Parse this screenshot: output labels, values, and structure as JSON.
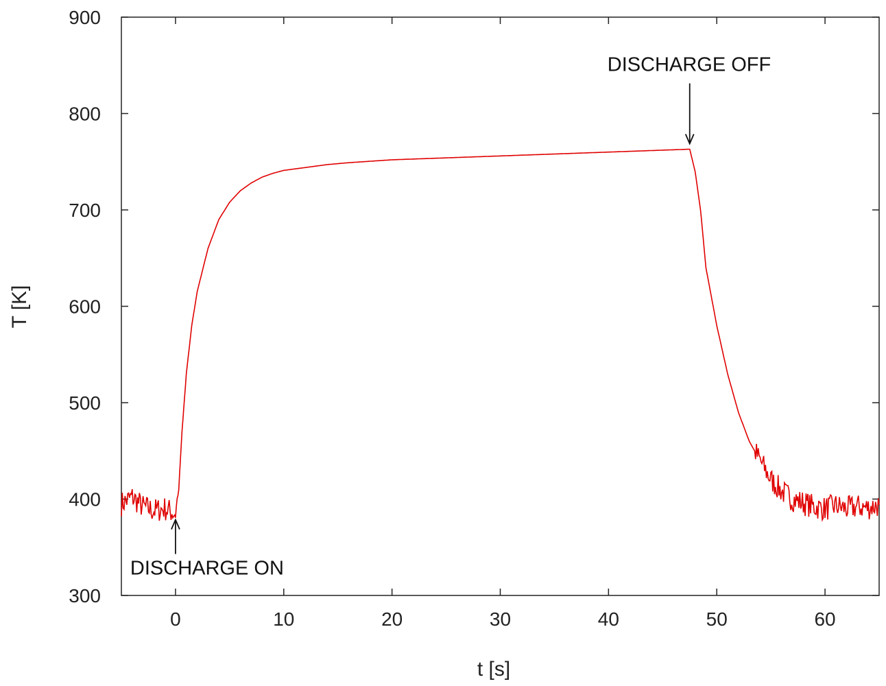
{
  "chart_data": {
    "type": "line",
    "title": "",
    "xlabel": "t [s]",
    "ylabel": "T [K]",
    "xlim": [
      -5,
      65
    ],
    "ylim": [
      300,
      900
    ],
    "xticks": [
      0,
      10,
      20,
      30,
      40,
      50,
      60
    ],
    "yticks": [
      300,
      400,
      500,
      600,
      700,
      800,
      900
    ],
    "grid": false,
    "legend": "none",
    "series": [
      {
        "name": "T",
        "color": "#e00000",
        "x": [
          -5,
          -4,
          -3,
          -2,
          -1,
          0,
          0.3,
          0.6,
          1,
          1.5,
          2,
          3,
          4,
          5,
          6,
          7,
          8,
          9,
          10,
          12,
          14,
          16,
          20,
          25,
          30,
          35,
          40,
          45,
          47.5,
          48,
          48.5,
          49,
          50,
          51,
          52,
          53,
          54,
          55,
          56,
          57,
          58,
          59,
          60,
          61,
          62,
          63,
          64,
          65
        ],
        "y": [
          395,
          402,
          392,
          388,
          390,
          385,
          410,
          470,
          530,
          580,
          615,
          660,
          690,
          708,
          720,
          728,
          734,
          738,
          741,
          744,
          747,
          749,
          752,
          754,
          756,
          758,
          760,
          762,
          763,
          740,
          700,
          640,
          580,
          530,
          490,
          460,
          440,
          420,
          408,
          400,
          396,
          392,
          390,
          393,
          390,
          392,
          391,
          394
        ]
      }
    ],
    "annotations": [
      {
        "text": "DISCHARGE ON",
        "x": 0,
        "y": 380
      },
      {
        "text": "DISCHARGE OFF",
        "x": 47.5,
        "y": 763
      }
    ]
  },
  "colors": {
    "line": "#e00000",
    "axis": "#222222"
  }
}
